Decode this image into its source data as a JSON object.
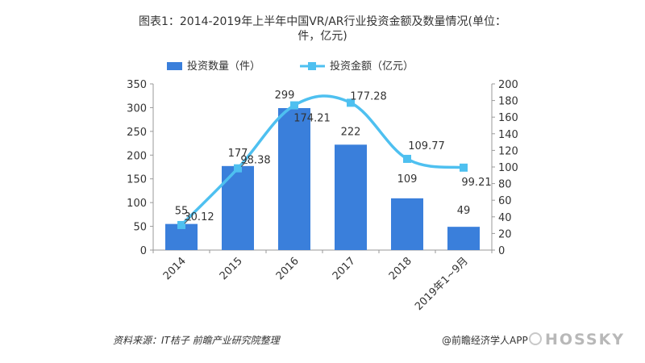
{
  "title_line1": "图表1：2014-2019年上半年中国VR/AR行业投资金额及数量情况(单位：",
  "title_line2": "件，亿元)",
  "source": "资料来源：IT桔子 前瞻产业研究院整理",
  "credit": "@前瞻经济学人APP",
  "logo_text": "HOSSKY",
  "chart_data": {
    "type": "bar+line",
    "categories": [
      "2014",
      "2015",
      "2016",
      "2017",
      "2018",
      "2019年1~9月"
    ],
    "series": [
      {
        "name": "投资数量（件）",
        "type": "bar",
        "axis": "left",
        "values": [
          55,
          177,
          299,
          222,
          109,
          49
        ],
        "color": "#3a7fdb"
      },
      {
        "name": "投资金额（亿元）",
        "type": "line",
        "axis": "right",
        "values": [
          30.12,
          98.38,
          174.21,
          177.28,
          109.77,
          99.21
        ],
        "color": "#4ec0f0"
      }
    ],
    "y_left": {
      "min": 0,
      "max": 350,
      "ticks": [
        0,
        50,
        100,
        150,
        200,
        250,
        300,
        350
      ]
    },
    "y_right": {
      "min": 0,
      "max": 200,
      "ticks": [
        0,
        20,
        40,
        60,
        80,
        100,
        120,
        140,
        160,
        180,
        200
      ]
    },
    "bar_labels": [
      "55",
      "177",
      "299",
      "222",
      "109",
      "49"
    ],
    "line_labels": [
      "30.12",
      "98.38",
      "174.21",
      "177.28",
      "109.77",
      "99.21"
    ],
    "legend_placement": "top-center",
    "grid": false
  }
}
